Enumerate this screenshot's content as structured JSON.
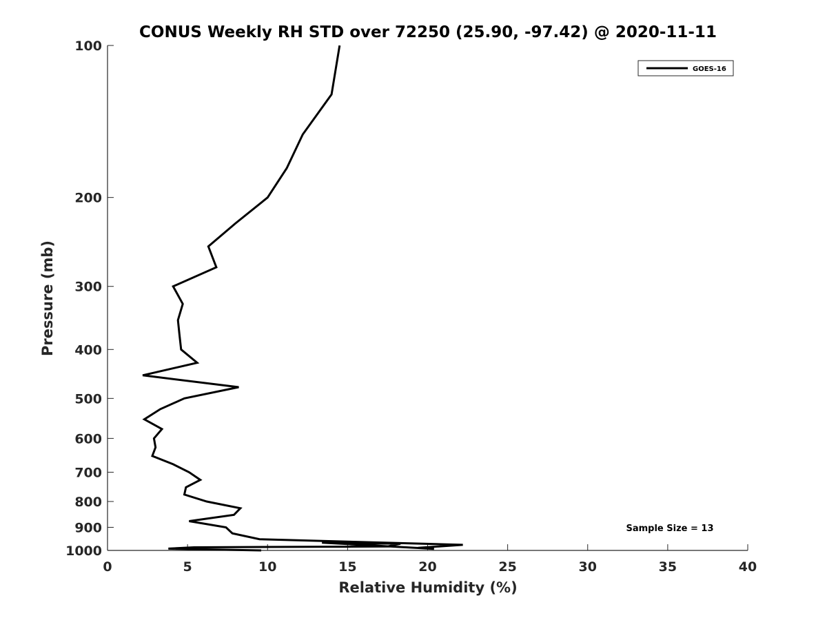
{
  "chart_data": {
    "type": "line",
    "title": "CONUS Weekly RH STD over 72250 (25.90, -97.42) @ 2020-11-11",
    "xlabel": "Relative Humidity (%)",
    "ylabel": "Pressure (mb)",
    "xlim": [
      0,
      40
    ],
    "ylim": [
      100,
      1000
    ],
    "y_scale": "log",
    "y_reversed": true,
    "grid": false,
    "legend_position": "top-right",
    "x_ticks": [
      0,
      5,
      10,
      15,
      20,
      25,
      30,
      35,
      40
    ],
    "y_ticks": [
      100,
      200,
      300,
      400,
      500,
      600,
      700,
      800,
      900,
      1000
    ],
    "annotation": "Sample Size = 13",
    "series": [
      {
        "name": "GOES-16",
        "color": "#000000",
        "points": [
          [
            14.5,
            100
          ],
          [
            14.0,
            125
          ],
          [
            12.2,
            150
          ],
          [
            11.2,
            175
          ],
          [
            10.0,
            200
          ],
          [
            8.0,
            225
          ],
          [
            6.3,
            250
          ],
          [
            6.8,
            275
          ],
          [
            4.1,
            300
          ],
          [
            4.7,
            325
          ],
          [
            4.4,
            350
          ],
          [
            4.5,
            375
          ],
          [
            4.6,
            400
          ],
          [
            5.6,
            425
          ],
          [
            2.2,
            450
          ],
          [
            8.2,
            475
          ],
          [
            4.8,
            500
          ],
          [
            3.3,
            525
          ],
          [
            2.3,
            550
          ],
          [
            3.4,
            575
          ],
          [
            2.9,
            600
          ],
          [
            3.0,
            625
          ],
          [
            2.8,
            650
          ],
          [
            4.1,
            675
          ],
          [
            5.1,
            700
          ],
          [
            5.8,
            725
          ],
          [
            4.9,
            750
          ],
          [
            4.8,
            775
          ],
          [
            6.2,
            800
          ],
          [
            8.3,
            825
          ],
          [
            7.9,
            850
          ],
          [
            5.1,
            875
          ],
          [
            7.4,
            900
          ],
          [
            7.8,
            925
          ],
          [
            9.5,
            950
          ],
          [
            22.2,
            975
          ],
          [
            19.4,
            988
          ],
          [
            20.4,
            993
          ],
          [
            13.4,
            965
          ],
          [
            18.3,
            970
          ],
          [
            17.5,
            982
          ],
          [
            5.4,
            986
          ],
          [
            3.8,
            992
          ],
          [
            9.6,
            1000
          ]
        ]
      }
    ]
  }
}
